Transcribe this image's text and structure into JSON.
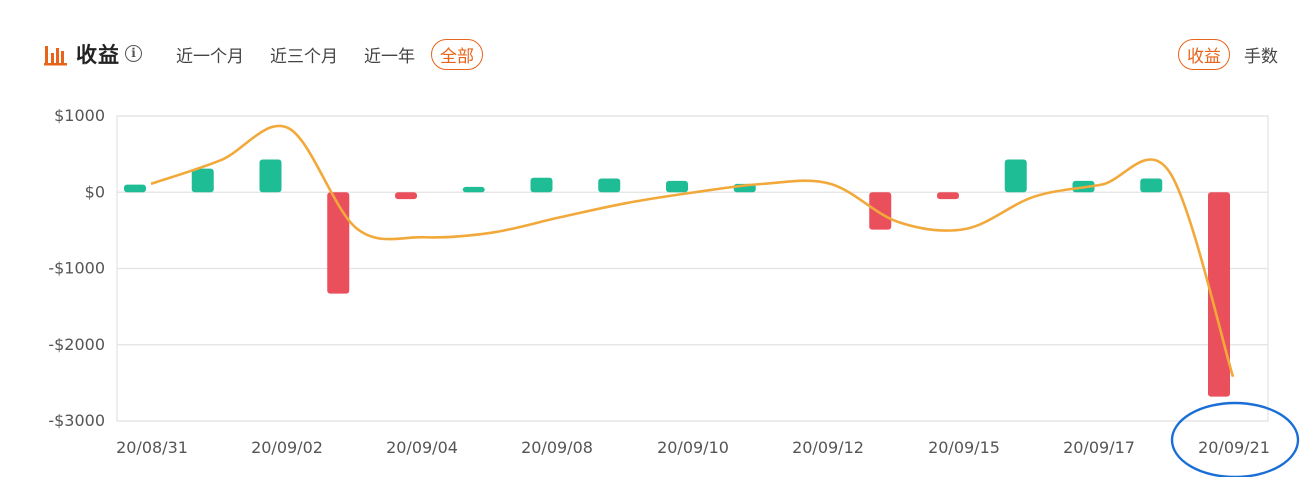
{
  "header": {
    "title": "收益",
    "info_icon": "info-icon",
    "range_tabs": [
      {
        "label": "近一个月",
        "active": false
      },
      {
        "label": "近三个月",
        "active": false
      },
      {
        "label": "近一年",
        "active": false
      },
      {
        "label": "全部",
        "active": true
      }
    ],
    "mode_tabs": [
      {
        "label": "收益",
        "active": true
      },
      {
        "label": "手数",
        "active": false
      }
    ]
  },
  "colors": {
    "accent": "#e8641b",
    "positive": "#1fbd95",
    "negative": "#ea4f5c",
    "line": "#f2a93b",
    "grid": "#e3e3e3",
    "highlight_circle": "#1a6fd6"
  },
  "chart_data": {
    "type": "bar",
    "title": "",
    "xlabel": "",
    "ylabel": "",
    "ylim": [
      -3000,
      1000
    ],
    "y_ticks": [
      1000,
      0,
      -1000,
      -2000,
      -3000
    ],
    "y_tick_labels": [
      "$1000",
      "$0",
      "-$1000",
      "-$2000",
      "-$3000"
    ],
    "x_tick_labels": [
      "20/08/31",
      "20/09/02",
      "20/09/04",
      "20/09/08",
      "20/09/10",
      "20/09/12",
      "20/09/15",
      "20/09/17",
      "20/09/21"
    ],
    "grid": true,
    "bars": [
      100,
      310,
      430,
      -1330,
      -90,
      70,
      190,
      180,
      150,
      110,
      0,
      -490,
      -90,
      430,
      150,
      180,
      -2680
    ],
    "line": [
      110,
      420,
      840,
      -470,
      -590,
      -530,
      -330,
      -140,
      0,
      110,
      110,
      -390,
      -480,
      -60,
      100,
      270,
      -2420
    ]
  }
}
